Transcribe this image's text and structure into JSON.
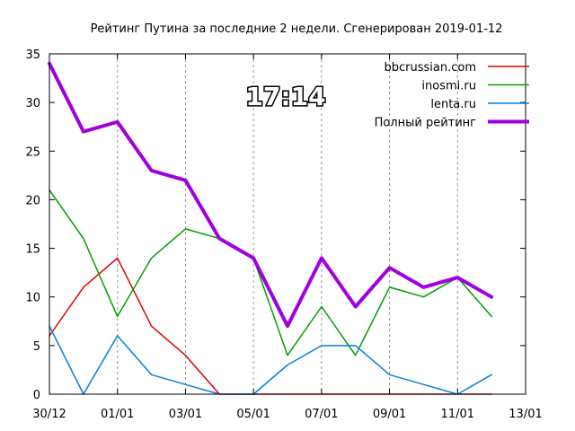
{
  "chart_data": {
    "type": "line",
    "title": "Рейтинг Путина за последние 2 недели. Сгенерирован 2019-01-12",
    "xlabel": "",
    "ylabel": "",
    "x_tick_labels": [
      "30/12",
      "01/01",
      "03/01",
      "05/01",
      "07/01",
      "09/01",
      "11/01",
      "13/01"
    ],
    "x_tick_values": [
      0,
      2,
      4,
      6,
      8,
      10,
      12,
      14
    ],
    "x_dates": [
      "2018-12-30",
      "2018-12-31",
      "2019-01-01",
      "2019-01-02",
      "2019-01-03",
      "2019-01-04",
      "2019-01-05",
      "2019-01-06",
      "2019-01-07",
      "2019-01-08",
      "2019-01-09",
      "2019-01-10",
      "2019-01-11",
      "2019-01-12"
    ],
    "xlim_dates": [
      "2018-12-30",
      "2019-01-13"
    ],
    "ylim": [
      0,
      35
    ],
    "y_ticks": [
      0,
      5,
      10,
      15,
      20,
      25,
      30,
      35
    ],
    "legend_position": "top-right",
    "overlay_text": "17:14",
    "series": [
      {
        "name": "bbcrussian.com",
        "color": "#e00000",
        "stroke_width": 1.5,
        "values": [
          6,
          11,
          14,
          7,
          4,
          0,
          0,
          0,
          0,
          0,
          0,
          0,
          0,
          0
        ]
      },
      {
        "name": "inosmi.ru",
        "color": "#00a000",
        "stroke_width": 1.5,
        "values": [
          21,
          16,
          8,
          14,
          17,
          16,
          14,
          4,
          9,
          4,
          11,
          10,
          12,
          8
        ]
      },
      {
        "name": "lenta.ru",
        "color": "#0080e0",
        "stroke_width": 1.5,
        "values": [
          7,
          0,
          6,
          2,
          1,
          0,
          0,
          3,
          5,
          5,
          2,
          1,
          0,
          2
        ]
      },
      {
        "name": "Полный рейтинг",
        "color": "#a000e0",
        "stroke_width": 4,
        "values": [
          34,
          27,
          28,
          23,
          22,
          16,
          14,
          7,
          14,
          9,
          13,
          11,
          12,
          10
        ]
      }
    ]
  }
}
